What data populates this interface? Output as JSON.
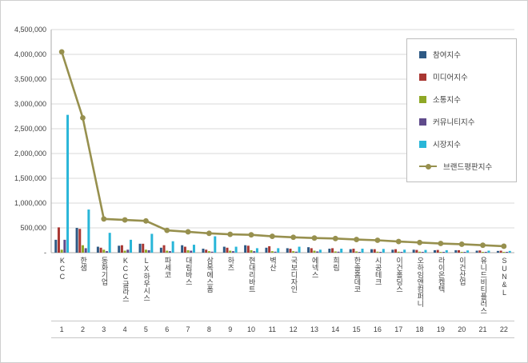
{
  "page": {
    "background": "#ffffff",
    "border_color": "#cfcfcf",
    "gridline_color": "#dadada",
    "axis_color": "#ababab",
    "band_line_color": "#c7c7c7",
    "text_color": "#404040"
  },
  "chart_data": {
    "type": "bar",
    "subtype": "grouped-bars-with-line",
    "title": "",
    "xlabel": "",
    "ylabel": "",
    "legend_position": "inside-top-right",
    "grid": true,
    "y_axis": {
      "min": 0,
      "max": 4500000,
      "step": 500000,
      "tick_labels": [
        "-",
        "500,000",
        "1,000,000",
        "1,500,000",
        "2,000,000",
        "2,500,000",
        "3,000,000",
        "3,500,000",
        "4,000,000",
        "4,500,000"
      ]
    },
    "categories": [
      "KCC",
      "한샘",
      "동화기업",
      "KCC글라스",
      "LX하우시스",
      "파세코",
      "대림바스",
      "삼목에스폼",
      "하츠",
      "현대리바트",
      "벽산",
      "국보디자인",
      "에넥스",
      "희림",
      "한솔홈데코",
      "시공테크",
      "이건홀딩스",
      "오하임앤컴퍼니",
      "라이온켐텍",
      "이건산업",
      "유니드비티플러스",
      "SUN&L"
    ],
    "rank_labels": [
      "1",
      "2",
      "3",
      "4",
      "5",
      "6",
      "7",
      "8",
      "9",
      "10",
      "11",
      "12",
      "13",
      "14",
      "15",
      "16",
      "17",
      "18",
      "19",
      "20",
      "21",
      "22"
    ],
    "series": [
      {
        "name": "참여지수",
        "type": "bar",
        "color": "#2E5984",
        "values": [
          260000,
          500000,
          120000,
          140000,
          180000,
          100000,
          150000,
          80000,
          120000,
          150000,
          100000,
          90000,
          110000,
          80000,
          70000,
          70000,
          60000,
          60000,
          50000,
          50000,
          40000,
          35000
        ]
      },
      {
        "name": "미디어지수",
        "type": "bar",
        "color": "#A93732",
        "values": [
          510000,
          480000,
          100000,
          150000,
          180000,
          150000,
          120000,
          60000,
          100000,
          140000,
          130000,
          80000,
          90000,
          90000,
          80000,
          70000,
          70000,
          55000,
          55000,
          50000,
          45000,
          40000
        ]
      },
      {
        "name": "소통지수",
        "type": "bar",
        "color": "#8FA826",
        "values": [
          60000,
          150000,
          60000,
          40000,
          60000,
          40000,
          50000,
          30000,
          40000,
          50000,
          30000,
          30000,
          40000,
          25000,
          25000,
          20000,
          20000,
          20000,
          15000,
          15000,
          12000,
          10000
        ]
      },
      {
        "name": "커뮤니티지수",
        "type": "bar",
        "color": "#5F4B8B",
        "values": [
          260000,
          90000,
          30000,
          60000,
          50000,
          30000,
          40000,
          20000,
          30000,
          30000,
          20000,
          20000,
          25000,
          20000,
          15000,
          15000,
          12000,
          12000,
          10000,
          10000,
          8000,
          8000
        ]
      },
      {
        "name": "시장지수",
        "type": "bar",
        "color": "#29B6D8",
        "values": [
          2780000,
          870000,
          400000,
          260000,
          380000,
          230000,
          160000,
          330000,
          120000,
          90000,
          90000,
          120000,
          60000,
          80000,
          80000,
          75000,
          60000,
          55000,
          50000,
          45000,
          40000,
          35000
        ]
      },
      {
        "name": "브랜드평판지수",
        "type": "line",
        "color": "#97904E",
        "values": [
          4050000,
          2720000,
          680000,
          660000,
          640000,
          450000,
          420000,
          390000,
          370000,
          360000,
          330000,
          310000,
          295000,
          285000,
          265000,
          250000,
          225000,
          205000,
          185000,
          170000,
          150000,
          130000
        ]
      }
    ]
  }
}
